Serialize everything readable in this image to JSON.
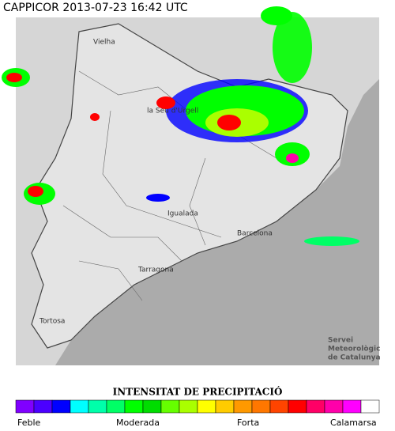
{
  "header": {
    "title": "CAPPICOR 2013-07-23 16:42 UTC"
  },
  "map": {
    "labels": [
      "Vielha",
      "la Seu d'Urgell",
      "Igualada",
      "Barcelona",
      "Tarragona",
      "Tortosa"
    ],
    "credit": [
      "Servei",
      "Meteorològic",
      "de Catalunya"
    ]
  },
  "legend": {
    "title": "INTENSITAT DE PRECIPITACIÓ",
    "labels": [
      "Feble",
      "Moderada",
      "Forta",
      "Calamarsa"
    ],
    "colors": [
      "#8000ff",
      "#4b00ff",
      "#0000ff",
      "#00ffff",
      "#00ffaa",
      "#00ff66",
      "#00ff00",
      "#00dd00",
      "#66ff00",
      "#aaff00",
      "#ffff00",
      "#ffcc00",
      "#ff9900",
      "#ff7700",
      "#ff4400",
      "#ff0000",
      "#ff0066",
      "#ff00aa",
      "#ff00ff",
      "#ffffff"
    ]
  }
}
